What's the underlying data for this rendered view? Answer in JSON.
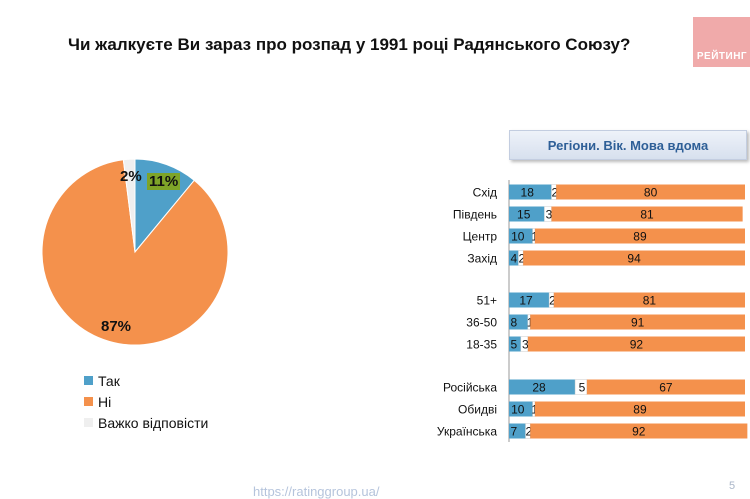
{
  "header": {
    "title": "Чи жалкуєте Ви зараз про розпад у 1991 році Радянського Союзу?",
    "logo_text": "РЕЙТИНГ"
  },
  "colors": {
    "yes": "#4fa0c9",
    "no": "#f4914c",
    "hard": "#efefef",
    "highlight": "#7ea428"
  },
  "chart_data": [
    {
      "type": "pie",
      "categories": [
        "Так",
        "Ні",
        "Важко відповісти"
      ],
      "values": [
        11,
        87,
        2
      ],
      "labels": [
        "11%",
        "87%",
        "2%"
      ],
      "legend": "bottom-left"
    },
    {
      "type": "bar",
      "stacked": true,
      "orientation": "horizontal",
      "title": "Регіони. Вік. Мова вдома",
      "groups": [
        {
          "categories": [
            "Схід",
            "Південь",
            "Центр",
            "Захід"
          ]
        },
        {
          "categories": [
            "51+",
            "36-50",
            "18-35"
          ]
        },
        {
          "categories": [
            "Російська",
            "Обидві",
            "Українська"
          ]
        }
      ],
      "series": [
        {
          "name": "Так",
          "values": [
            18,
            15,
            10,
            4,
            17,
            8,
            5,
            28,
            10,
            7
          ]
        },
        {
          "name": "Важко відповісти",
          "values": [
            2,
            3,
            1,
            2,
            2,
            1,
            3,
            5,
            1,
            2
          ]
        },
        {
          "name": "Ні",
          "values": [
            80,
            81,
            89,
            94,
            81,
            91,
            92,
            67,
            89,
            92
          ]
        }
      ],
      "xlim": [
        0,
        100
      ]
    }
  ],
  "legend_items": [
    "Так",
    "Ні",
    "Важко відповісти"
  ],
  "footer": {
    "url": "https://ratinggroup.ua/",
    "page": "5"
  }
}
